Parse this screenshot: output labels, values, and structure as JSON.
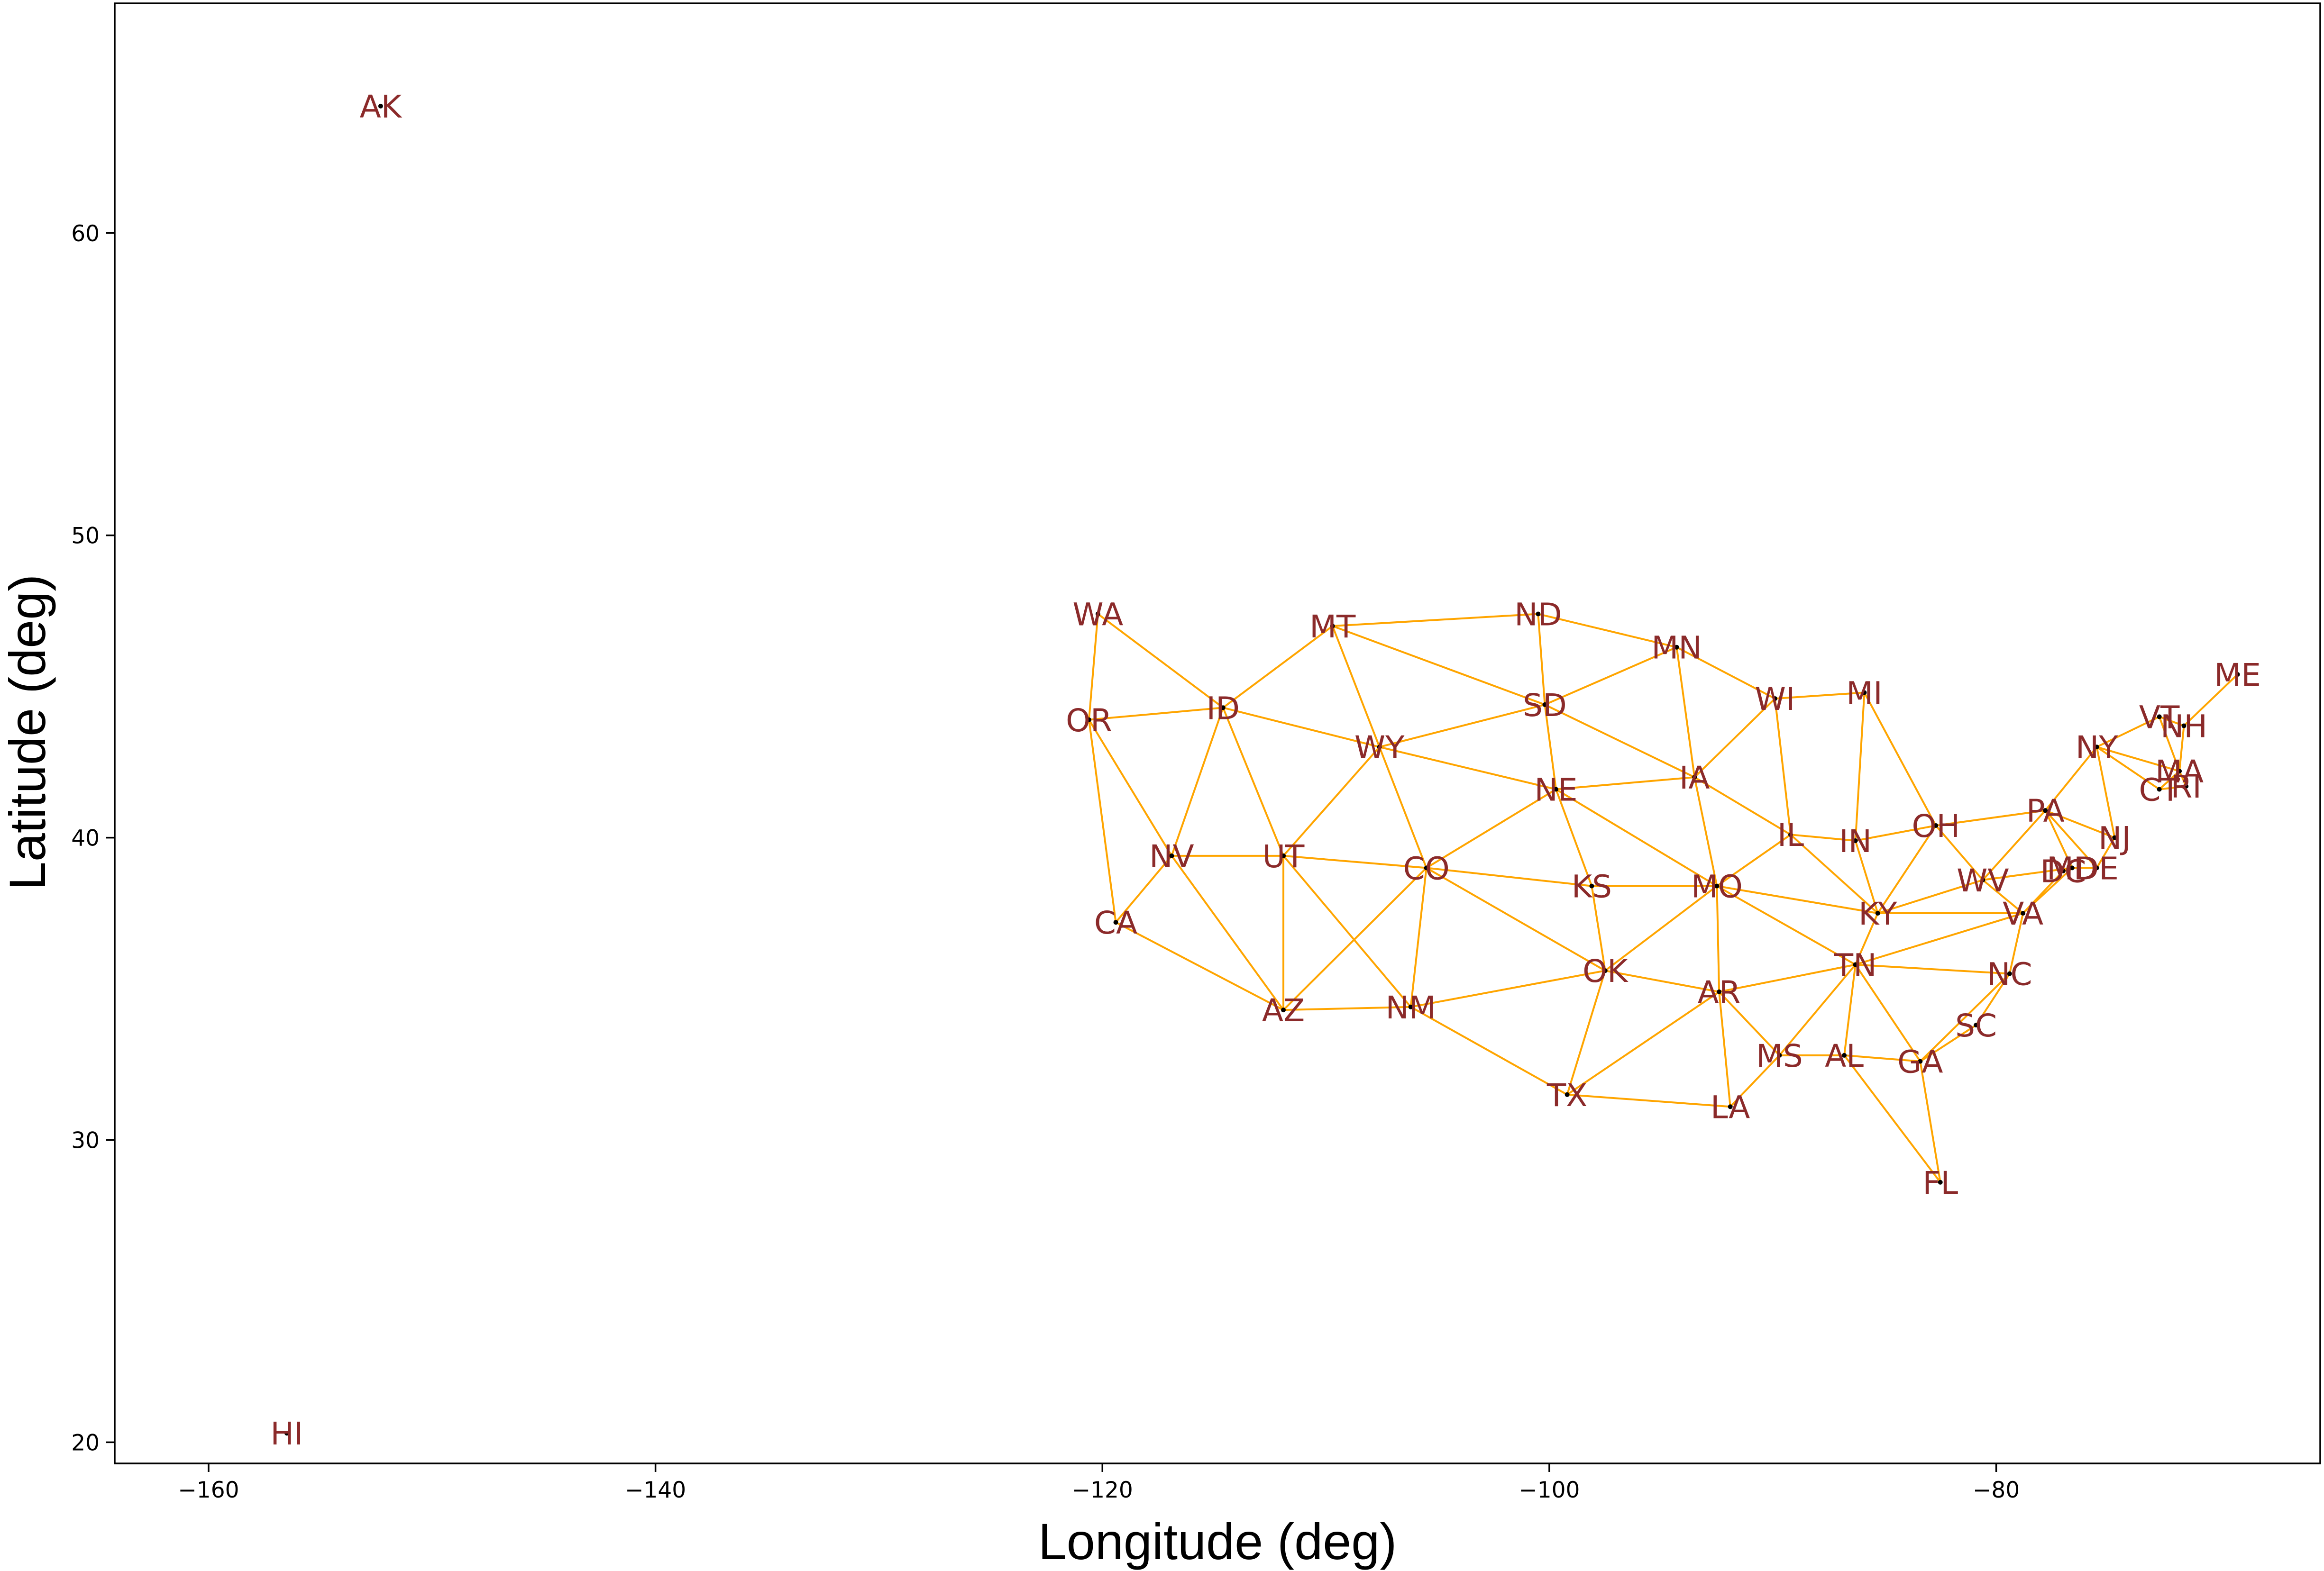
{
  "chart_data": {
    "type": "scatter",
    "title": "",
    "xlabel": "Longitude (deg)",
    "ylabel": "Latitude (deg)",
    "xlim": [
      -164.2,
      -65.5
    ],
    "ylim": [
      19.3,
      67.6
    ],
    "xticks": [
      -160,
      -140,
      -120,
      -100,
      -80
    ],
    "yticks": [
      20,
      30,
      40,
      50,
      60
    ],
    "xtick_labels": [
      "−160",
      "−140",
      "−120",
      "−100",
      "−80"
    ],
    "ytick_labels": [
      "20",
      "30",
      "40",
      "50",
      "60"
    ],
    "grid": false,
    "legend": "none",
    "colors": {
      "edge": "#ffa500",
      "point": "#000000",
      "label": "#8b2a2a",
      "axis": "#000000"
    },
    "points": [
      {
        "label": "AK",
        "x": -152.3,
        "y": 64.2
      },
      {
        "label": "HI",
        "x": -156.5,
        "y": 20.3
      },
      {
        "label": "WA",
        "x": -120.2,
        "y": 47.4
      },
      {
        "label": "OR",
        "x": -120.6,
        "y": 43.9
      },
      {
        "label": "CA",
        "x": -119.4,
        "y": 37.2
      },
      {
        "label": "NV",
        "x": -116.9,
        "y": 39.4
      },
      {
        "label": "ID",
        "x": -114.6,
        "y": 44.3
      },
      {
        "label": "MT",
        "x": -109.7,
        "y": 47.0
      },
      {
        "label": "WY",
        "x": -107.6,
        "y": 43.0
      },
      {
        "label": "UT",
        "x": -111.9,
        "y": 39.4
      },
      {
        "label": "AZ",
        "x": -111.9,
        "y": 34.3
      },
      {
        "label": "CO",
        "x": -105.5,
        "y": 39.0
      },
      {
        "label": "NM",
        "x": -106.2,
        "y": 34.4
      },
      {
        "label": "ND",
        "x": -100.5,
        "y": 47.4
      },
      {
        "label": "SD",
        "x": -100.2,
        "y": 44.4
      },
      {
        "label": "NE",
        "x": -99.7,
        "y": 41.6
      },
      {
        "label": "KS",
        "x": -98.1,
        "y": 38.4
      },
      {
        "label": "OK",
        "x": -97.5,
        "y": 35.6
      },
      {
        "label": "TX",
        "x": -99.2,
        "y": 31.5
      },
      {
        "label": "MN",
        "x": -94.3,
        "y": 46.3
      },
      {
        "label": "IA",
        "x": -93.5,
        "y": 42.0
      },
      {
        "label": "MO",
        "x": -92.5,
        "y": 38.4
      },
      {
        "label": "AR",
        "x": -92.4,
        "y": 34.9
      },
      {
        "label": "LA",
        "x": -91.9,
        "y": 31.1
      },
      {
        "label": "WI",
        "x": -89.9,
        "y": 44.6
      },
      {
        "label": "IL",
        "x": -89.2,
        "y": 40.1
      },
      {
        "label": "MI",
        "x": -85.9,
        "y": 44.8
      },
      {
        "label": "IN",
        "x": -86.3,
        "y": 39.9
      },
      {
        "label": "OH",
        "x": -82.7,
        "y": 40.4
      },
      {
        "label": "KY",
        "x": -85.3,
        "y": 37.5
      },
      {
        "label": "TN",
        "x": -86.3,
        "y": 35.8
      },
      {
        "label": "MS",
        "x": -89.7,
        "y": 32.8
      },
      {
        "label": "AL",
        "x": -86.8,
        "y": 32.8
      },
      {
        "label": "GA",
        "x": -83.4,
        "y": 32.6
      },
      {
        "label": "FL",
        "x": -82.5,
        "y": 28.6
      },
      {
        "label": "SC",
        "x": -80.9,
        "y": 33.8
      },
      {
        "label": "NC",
        "x": -79.4,
        "y": 35.5
      },
      {
        "label": "VA",
        "x": -78.8,
        "y": 37.5
      },
      {
        "label": "WV",
        "x": -80.6,
        "y": 38.6
      },
      {
        "label": "PA",
        "x": -77.8,
        "y": 40.9
      },
      {
        "label": "MD",
        "x": -76.6,
        "y": 39.0
      },
      {
        "label": "DE",
        "x": -75.5,
        "y": 39.0
      },
      {
        "label": "DC",
        "x": -77.0,
        "y": 38.9
      },
      {
        "label": "NJ",
        "x": -74.7,
        "y": 40.0
      },
      {
        "label": "NY",
        "x": -75.5,
        "y": 43.0
      },
      {
        "label": "CT",
        "x": -72.7,
        "y": 41.6
      },
      {
        "label": "RI",
        "x": -71.5,
        "y": 41.7
      },
      {
        "label": "MA",
        "x": -71.8,
        "y": 42.2
      },
      {
        "label": "VT",
        "x": -72.7,
        "y": 44.0
      },
      {
        "label": "NH",
        "x": -71.6,
        "y": 43.7
      },
      {
        "label": "ME",
        "x": -69.2,
        "y": 45.4
      }
    ],
    "edges": [
      [
        "WA",
        "OR"
      ],
      [
        "WA",
        "ID"
      ],
      [
        "OR",
        "ID"
      ],
      [
        "OR",
        "NV"
      ],
      [
        "OR",
        "CA"
      ],
      [
        "CA",
        "NV"
      ],
      [
        "CA",
        "AZ"
      ],
      [
        "NV",
        "ID"
      ],
      [
        "NV",
        "UT"
      ],
      [
        "NV",
        "AZ"
      ],
      [
        "ID",
        "MT"
      ],
      [
        "ID",
        "WY"
      ],
      [
        "ID",
        "UT"
      ],
      [
        "MT",
        "ND"
      ],
      [
        "MT",
        "SD"
      ],
      [
        "MT",
        "WY"
      ],
      [
        "WY",
        "SD"
      ],
      [
        "WY",
        "NE"
      ],
      [
        "WY",
        "CO"
      ],
      [
        "WY",
        "UT"
      ],
      [
        "UT",
        "CO"
      ],
      [
        "UT",
        "AZ"
      ],
      [
        "UT",
        "NM"
      ],
      [
        "AZ",
        "NM"
      ],
      [
        "AZ",
        "CO"
      ],
      [
        "CO",
        "NM"
      ],
      [
        "CO",
        "NE"
      ],
      [
        "CO",
        "KS"
      ],
      [
        "CO",
        "OK"
      ],
      [
        "NM",
        "OK"
      ],
      [
        "NM",
        "TX"
      ],
      [
        "ND",
        "SD"
      ],
      [
        "ND",
        "MN"
      ],
      [
        "SD",
        "MN"
      ],
      [
        "SD",
        "NE"
      ],
      [
        "SD",
        "IA"
      ],
      [
        "NE",
        "IA"
      ],
      [
        "NE",
        "KS"
      ],
      [
        "NE",
        "MO"
      ],
      [
        "KS",
        "MO"
      ],
      [
        "KS",
        "OK"
      ],
      [
        "OK",
        "MO"
      ],
      [
        "OK",
        "AR"
      ],
      [
        "OK",
        "TX"
      ],
      [
        "TX",
        "AR"
      ],
      [
        "TX",
        "LA"
      ],
      [
        "MN",
        "IA"
      ],
      [
        "MN",
        "WI"
      ],
      [
        "IA",
        "WI"
      ],
      [
        "IA",
        "IL"
      ],
      [
        "IA",
        "MO"
      ],
      [
        "MO",
        "IL"
      ],
      [
        "MO",
        "KY"
      ],
      [
        "MO",
        "TN"
      ],
      [
        "MO",
        "AR"
      ],
      [
        "AR",
        "TN"
      ],
      [
        "AR",
        "MS"
      ],
      [
        "AR",
        "LA"
      ],
      [
        "LA",
        "MS"
      ],
      [
        "WI",
        "IL"
      ],
      [
        "WI",
        "MI"
      ],
      [
        "MI",
        "IN"
      ],
      [
        "MI",
        "OH"
      ],
      [
        "IL",
        "IN"
      ],
      [
        "IL",
        "KY"
      ],
      [
        "IN",
        "OH"
      ],
      [
        "IN",
        "KY"
      ],
      [
        "OH",
        "KY"
      ],
      [
        "OH",
        "WV"
      ],
      [
        "OH",
        "PA"
      ],
      [
        "KY",
        "WV"
      ],
      [
        "KY",
        "VA"
      ],
      [
        "KY",
        "TN"
      ],
      [
        "TN",
        "VA"
      ],
      [
        "TN",
        "NC"
      ],
      [
        "TN",
        "GA"
      ],
      [
        "TN",
        "AL"
      ],
      [
        "TN",
        "MS"
      ],
      [
        "MS",
        "AL"
      ],
      [
        "AL",
        "GA"
      ],
      [
        "AL",
        "FL"
      ],
      [
        "GA",
        "FL"
      ],
      [
        "GA",
        "SC"
      ],
      [
        "GA",
        "NC"
      ],
      [
        "SC",
        "NC"
      ],
      [
        "NC",
        "VA"
      ],
      [
        "VA",
        "WV"
      ],
      [
        "VA",
        "MD"
      ],
      [
        "VA",
        "DC"
      ],
      [
        "WV",
        "PA"
      ],
      [
        "WV",
        "MD"
      ],
      [
        "PA",
        "MD"
      ],
      [
        "PA",
        "DE"
      ],
      [
        "PA",
        "NJ"
      ],
      [
        "PA",
        "NY"
      ],
      [
        "NY",
        "NJ"
      ],
      [
        "NY",
        "CT"
      ],
      [
        "NY",
        "MA"
      ],
      [
        "NY",
        "VT"
      ],
      [
        "VT",
        "NH"
      ],
      [
        "VT",
        "MA"
      ],
      [
        "NH",
        "MA"
      ],
      [
        "NH",
        "ME"
      ],
      [
        "MA",
        "CT"
      ],
      [
        "MA",
        "RI"
      ],
      [
        "CT",
        "RI"
      ],
      [
        "MD",
        "DE"
      ],
      [
        "MD",
        "DC"
      ],
      [
        "DE",
        "NJ"
      ]
    ]
  }
}
